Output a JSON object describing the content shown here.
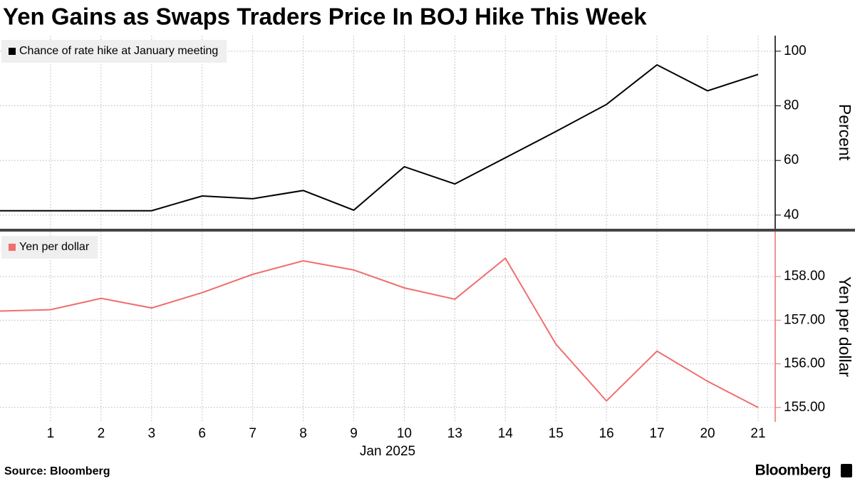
{
  "title": "Yen Gains as Swaps Traders Price In BOJ Hike This Week",
  "source": "Source:  Bloomberg",
  "brand": "Bloomberg",
  "x_sublabel": "Jan 2025",
  "chart_data": [
    {
      "type": "line",
      "categories": [
        null,
        "1",
        "2",
        "3",
        "6",
        "7",
        "8",
        "9",
        "10",
        "13",
        "14",
        "15",
        "16",
        "17",
        "20",
        "21"
      ],
      "series": [
        {
          "name": "Chance of rate hike at January meeting",
          "color": "#000000",
          "values": [
            41.6,
            41.6,
            41.6,
            41.6,
            47,
            46,
            49,
            41.8,
            57.7,
            51.4,
            61,
            70.6,
            80.5,
            95,
            85.5,
            91.5
          ]
        }
      ],
      "y_label": "Percent",
      "ylim": [
        35,
        105.7
      ],
      "yticks": [
        40,
        60,
        80,
        100
      ],
      "grid": true
    },
    {
      "type": "line",
      "categories": [
        null,
        "1",
        "2",
        "3",
        "6",
        "7",
        "8",
        "9",
        "10",
        "13",
        "14",
        "15",
        "16",
        "17",
        "20",
        "21"
      ],
      "series": [
        {
          "name": "Yen per dollar",
          "color": "#f06e6e",
          "values": [
            157.21,
            157.24,
            157.5,
            157.28,
            157.63,
            158.05,
            158.36,
            158.15,
            157.74,
            157.48,
            158.42,
            156.45,
            155.15,
            156.29,
            155.6,
            155.0
          ]
        }
      ],
      "y_label": "Yen per dollar",
      "ylim": [
        154.67,
        159.03
      ],
      "yticks": [
        {
          "value": 155,
          "label": "155.00"
        },
        {
          "value": 156,
          "label": "156.00"
        },
        {
          "value": 157,
          "label": "157.00"
        },
        {
          "value": 158,
          "label": "158.00"
        }
      ],
      "grid": true
    }
  ]
}
